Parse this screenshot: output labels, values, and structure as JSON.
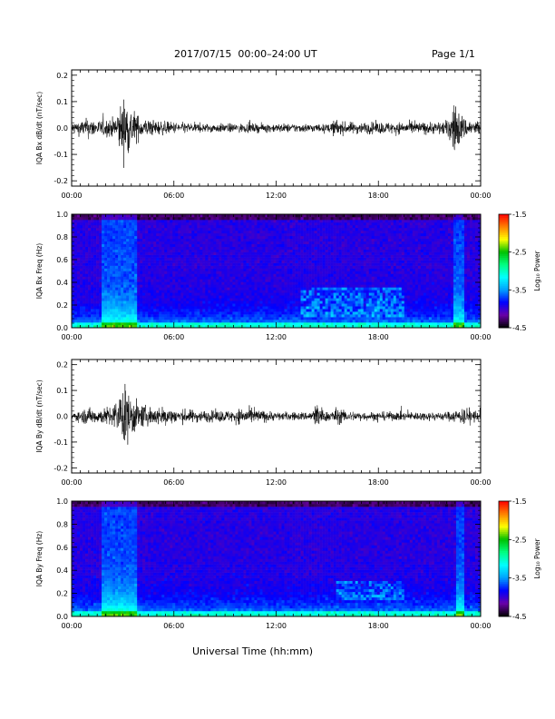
{
  "header": {
    "title": "2017/07/15  00:00–24:00 UT",
    "page": "Page 1/1"
  },
  "footer": {
    "xlabel": "Universal Time (hh:mm)"
  },
  "colors": {
    "trace": "#000000",
    "axis": "#000000",
    "colormap": [
      "#000000",
      "#6a00a8",
      "#0000ff",
      "#00a0ff",
      "#00ffff",
      "#00ff80",
      "#00c000",
      "#ffff00",
      "#ff8000",
      "#ff0000"
    ]
  },
  "colorbar": {
    "label": "Log₁₀ Power",
    "ticks": [
      "-1.5",
      "-2.5",
      "-3.5",
      "-4.5"
    ],
    "range": [
      -4.5,
      -1.5
    ]
  },
  "chart_data": [
    {
      "type": "line",
      "ylabel": "IQA Bx dB/dt (nT/sec)",
      "xlim": [
        "00:00",
        "24:00"
      ],
      "ylim": [
        -0.22,
        0.22
      ],
      "x_ticks": [
        "00:00",
        "06:00",
        "12:00",
        "18:00",
        "00:00"
      ],
      "y_ticks": [
        "0.2",
        "0.1",
        "0.0",
        "-0.1",
        "-0.2"
      ],
      "envelope": {
        "hours": [
          0,
          0.5,
          1.0,
          1.5,
          2.0,
          2.5,
          3.0,
          3.2,
          3.5,
          4.0,
          5.0,
          6.0,
          8.0,
          9.5,
          10.0,
          12.0,
          14.0,
          15.0,
          15.5,
          16.0,
          17.0,
          18.0,
          20.0,
          21.0,
          22.0,
          22.6,
          22.8,
          23.2,
          24.0
        ],
        "amplitude": [
          0.04,
          0.05,
          0.07,
          0.05,
          0.06,
          0.07,
          0.2,
          0.2,
          0.15,
          0.07,
          0.05,
          0.04,
          0.03,
          0.03,
          0.03,
          0.03,
          0.03,
          0.025,
          0.06,
          0.04,
          0.04,
          0.04,
          0.04,
          0.04,
          0.05,
          0.2,
          0.1,
          0.06,
          0.05
        ]
      }
    },
    {
      "type": "heatmap",
      "ylabel": "IQA Bx Freq (Hz)",
      "xlim": [
        "00:00",
        "24:00"
      ],
      "ylim": [
        0.0,
        1.0
      ],
      "x_ticks": [
        "00:00",
        "06:00",
        "12:00",
        "18:00",
        "00:00"
      ],
      "y_ticks": [
        "1.0",
        "0.8",
        "0.6",
        "0.4",
        "0.2",
        "0.0"
      ],
      "features": [
        {
          "hour_range": [
            1.8,
            3.8
          ],
          "freq_range": [
            0.0,
            1.0
          ],
          "log_power": -3.0
        },
        {
          "hour_range": [
            13.5,
            19.5
          ],
          "freq_range": [
            0.1,
            0.35
          ],
          "log_power": -2.6
        },
        {
          "hour_range": [
            22.4,
            23.0
          ],
          "freq_range": [
            0.0,
            1.0
          ],
          "log_power": -3.0
        }
      ]
    },
    {
      "type": "line",
      "ylabel": "IQA By dB/dt (nT/sec)",
      "xlim": [
        "00:00",
        "24:00"
      ],
      "ylim": [
        -0.22,
        0.22
      ],
      "x_ticks": [
        "00:00",
        "06:00",
        "12:00",
        "18:00",
        "00:00"
      ],
      "y_ticks": [
        "0.2",
        "0.1",
        "0.0",
        "-0.1",
        "-0.2"
      ],
      "envelope": {
        "hours": [
          0,
          0.5,
          1.0,
          1.5,
          2.0,
          2.5,
          3.0,
          3.2,
          3.5,
          4.0,
          5.0,
          5.5,
          6.0,
          8.0,
          9.5,
          10.0,
          12.0,
          14.0,
          14.3,
          15.0,
          15.5,
          16.0,
          17.0,
          18.0,
          20.0,
          22.0,
          23.0,
          24.0
        ],
        "amplitude": [
          0.03,
          0.04,
          0.06,
          0.05,
          0.06,
          0.09,
          0.2,
          0.2,
          0.15,
          0.08,
          0.06,
          0.07,
          0.05,
          0.04,
          0.04,
          0.06,
          0.03,
          0.03,
          0.1,
          0.03,
          0.06,
          0.04,
          0.03,
          0.03,
          0.03,
          0.03,
          0.06,
          0.04
        ]
      }
    },
    {
      "type": "heatmap",
      "ylabel": "IQA By Freq (Hz)",
      "xlim": [
        "00:00",
        "24:00"
      ],
      "ylim": [
        0.0,
        1.0
      ],
      "x_ticks": [
        "00:00",
        "06:00",
        "12:00",
        "18:00",
        "00:00"
      ],
      "y_ticks": [
        "1.0",
        "0.8",
        "0.6",
        "0.4",
        "0.2",
        "0.0"
      ],
      "features": [
        {
          "hour_range": [
            1.8,
            3.8
          ],
          "freq_range": [
            0.0,
            1.0
          ],
          "log_power": -3.0
        },
        {
          "hour_range": [
            15.5,
            19.5
          ],
          "freq_range": [
            0.15,
            0.32
          ],
          "log_power": -2.6
        },
        {
          "hour_range": [
            22.6,
            23.0
          ],
          "freq_range": [
            0.0,
            1.0
          ],
          "log_power": -3.0
        }
      ]
    }
  ]
}
